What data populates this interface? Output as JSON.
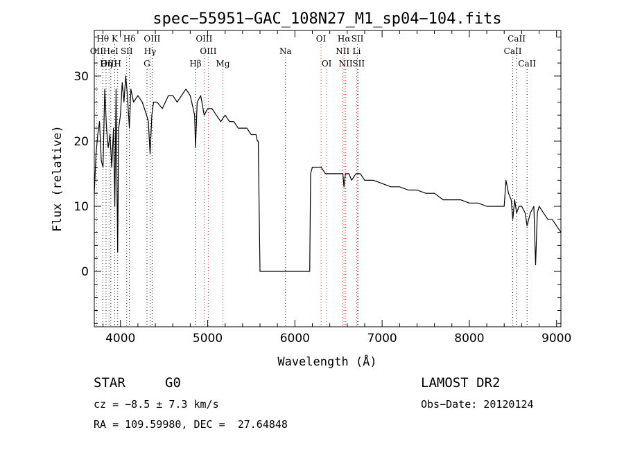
{
  "chart_data": {
    "type": "line",
    "title": "spec−55951−GAC_108N27_M1_sp04−104.fits",
    "xlabel": "Wavelength (Å)",
    "ylabel": "Flux (relative)",
    "xlim": [
      3700,
      9050
    ],
    "ylim": [
      -8.5,
      37
    ],
    "xticks": [
      4000,
      5000,
      6000,
      7000,
      8000,
      9000
    ],
    "yticks": [
      0,
      10,
      20,
      30
    ],
    "grid": false,
    "spectrum": {
      "x": [
        3700,
        3720,
        3740,
        3760,
        3780,
        3800,
        3820,
        3840,
        3860,
        3880,
        3900,
        3920,
        3935,
        3950,
        3968,
        3980,
        4000,
        4020,
        4040,
        4060,
        4080,
        4102,
        4120,
        4150,
        4200,
        4250,
        4300,
        4320,
        4340,
        4360,
        4380,
        4420,
        4480,
        4550,
        4600,
        4650,
        4700,
        4750,
        4800,
        4850,
        4861,
        4880,
        4920,
        4960,
        5000,
        5050,
        5100,
        5150,
        5200,
        5250,
        5300,
        5350,
        5400,
        5450,
        5500,
        5530,
        5555,
        5570,
        5580,
        5600,
        6170,
        6180,
        6200,
        6250,
        6300,
        6350,
        6400,
        6450,
        6500,
        6550,
        6563,
        6580,
        6620,
        6650,
        6700,
        6750,
        6800,
        6900,
        7000,
        7100,
        7200,
        7300,
        7400,
        7500,
        7600,
        7700,
        7800,
        7900,
        8000,
        8100,
        8200,
        8300,
        8400,
        8420,
        8450,
        8480,
        8498,
        8520,
        8542,
        8570,
        8600,
        8640,
        8662,
        8700,
        8740,
        8760,
        8780,
        8800,
        8850,
        8900,
        8950,
        9000,
        9050
      ],
      "y": [
        12,
        18,
        21,
        23,
        17,
        16,
        28,
        22,
        19,
        21,
        16,
        22,
        10,
        28,
        3,
        22,
        24,
        29,
        26,
        30,
        27,
        22,
        28,
        26,
        27,
        26,
        24,
        23,
        18,
        24,
        26,
        26,
        25,
        27,
        27,
        26,
        27,
        28,
        27,
        24,
        19,
        26,
        27,
        24,
        25,
        25,
        24,
        23,
        24,
        23,
        23,
        22,
        22,
        22,
        21,
        21,
        21,
        20,
        20,
        0,
        0,
        15,
        16,
        16,
        16,
        15,
        15,
        15,
        15,
        15,
        13,
        15,
        15,
        14,
        15,
        15,
        14,
        14,
        13.5,
        13,
        13,
        12.5,
        12.5,
        12,
        12,
        11,
        11,
        11,
        10.5,
        10.5,
        10,
        10,
        10,
        14,
        12,
        11,
        8,
        11,
        9,
        10,
        10,
        9,
        7,
        9,
        10,
        1,
        9,
        10,
        9,
        8,
        8,
        7,
        6
      ]
    },
    "lines": [
      {
        "label": "Hθ",
        "x": 3798,
        "row": 0,
        "color": "#111111"
      },
      {
        "label": "K",
        "x": 3934,
        "row": 0,
        "color": "#111111"
      },
      {
        "label": "Hδ",
        "x": 4102,
        "row": 0,
        "color": "#111111"
      },
      {
        "label": "OIII",
        "x": 4363,
        "row": 0,
        "color": "#111111"
      },
      {
        "label": "OIII",
        "x": 4959,
        "row": 0,
        "color": "#c0392b"
      },
      {
        "label": "OI",
        "x": 6300,
        "row": 0,
        "color": "#c0392b"
      },
      {
        "label": "Hα",
        "x": 6563,
        "row": 0,
        "color": "#c0392b"
      },
      {
        "label": "SII",
        "x": 6717,
        "row": 0,
        "color": "#c0392b"
      },
      {
        "label": "CaII",
        "x": 8542,
        "row": 0,
        "color": "#111111"
      },
      {
        "label": "OII",
        "x": 3727,
        "row": 1,
        "color": "#c0392b"
      },
      {
        "label": "HeI",
        "x": 3889,
        "row": 1,
        "color": "#111111"
      },
      {
        "label": "SII",
        "x": 4072,
        "row": 1,
        "color": "#111111"
      },
      {
        "label": "Hγ",
        "x": 4340,
        "row": 1,
        "color": "#111111"
      },
      {
        "label": "OIII",
        "x": 5007,
        "row": 1,
        "color": "#c0392b"
      },
      {
        "label": "Na",
        "x": 5893,
        "row": 1,
        "color": "#111111"
      },
      {
        "label": "NII",
        "x": 6548,
        "row": 1,
        "color": "#c0392b"
      },
      {
        "label": "Li",
        "x": 6708,
        "row": 1,
        "color": "#c0392b"
      },
      {
        "label": "CaII",
        "x": 8498,
        "row": 1,
        "color": "#111111"
      },
      {
        "label": "OIII",
        "x": 3869,
        "row": 2,
        "color": "#c0392b"
      },
      {
        "label": "Hη",
        "x": 3835,
        "row": 2,
        "color": "#111111"
      },
      {
        "label": "H",
        "x": 3968,
        "row": 2,
        "color": "#111111"
      },
      {
        "label": "G",
        "x": 4304,
        "row": 2,
        "color": "#111111"
      },
      {
        "label": "Hβ",
        "x": 4861,
        "row": 2,
        "color": "#111111"
      },
      {
        "label": "Mg",
        "x": 5175,
        "row": 2,
        "color": "#c0392b"
      },
      {
        "label": "OI",
        "x": 6364,
        "row": 2,
        "color": "#c0392b"
      },
      {
        "label": "NII",
        "x": 6583,
        "row": 2,
        "color": "#c0392b"
      },
      {
        "label": "SII",
        "x": 6731,
        "row": 2,
        "color": "#c0392b"
      },
      {
        "label": "CaII",
        "x": 8662,
        "row": 2,
        "color": "#111111"
      }
    ]
  },
  "footer": {
    "class_label": "STAR",
    "subclass": "G0",
    "survey": "LAMOST DR2",
    "redshift": "cz = −8.5 ± 7.3 km/s",
    "obs_date": "Obs−Date: 20120124",
    "coords": "RA = 109.59980, DEC =  27.64848"
  }
}
